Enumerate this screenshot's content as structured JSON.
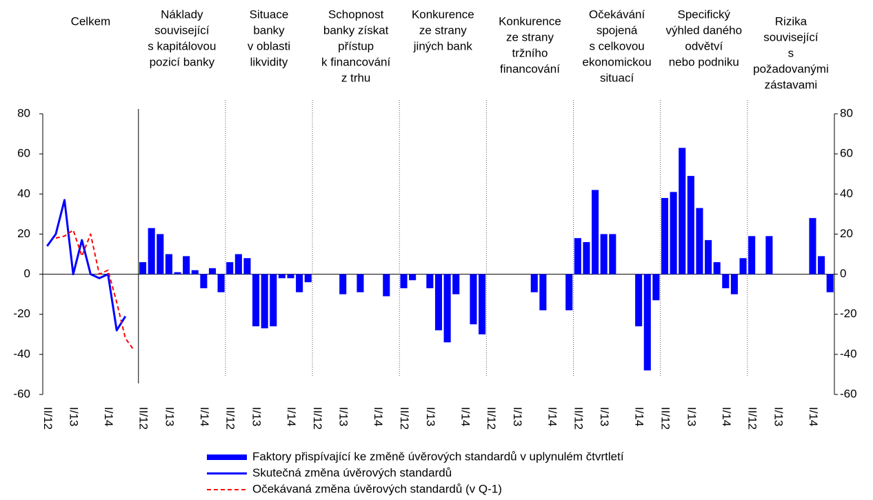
{
  "chart_data": {
    "type": "bar",
    "group_labels": [
      [
        "Celkem"
      ],
      [
        "Náklady",
        "související",
        "s kapitálovou",
        "pozicí banky"
      ],
      [
        "Situace",
        "banky",
        "v oblasti",
        "likvidity"
      ],
      [
        "Schopnost",
        "banky získat",
        "přístup",
        "k financování",
        "z trhu"
      ],
      [
        "Konkurence",
        "ze strany",
        "jiných bank"
      ],
      [
        "Konkurence",
        "ze strany",
        "tržního",
        "financování"
      ],
      [
        "Očekávání",
        "spojená",
        "s celkovou",
        "ekonomickou",
        "situací"
      ],
      [
        "Specifický",
        "výhled daného",
        "odvětví",
        "nebo podniku"
      ],
      [
        "Rizika",
        "související",
        "s",
        "požadovanými",
        "zástavami"
      ]
    ],
    "categories": [
      "II/12",
      null,
      null,
      "I/13",
      null,
      null,
      null,
      "I/14",
      null,
      null,
      null,
      "II/12",
      null,
      null,
      "I/13",
      null,
      null,
      null,
      "I/14",
      null,
      null,
      "II/12",
      null,
      null,
      "I/13",
      null,
      null,
      null,
      "I/14",
      null,
      null,
      "II/12",
      null,
      null,
      "I/13",
      null,
      null,
      null,
      "I/14",
      null,
      null,
      "II/12",
      null,
      null,
      "I/13",
      null,
      null,
      null,
      "I/14",
      null,
      null,
      "II/12",
      null,
      null,
      "I/13",
      null,
      null,
      null,
      "I/14",
      null,
      null,
      "II/12",
      null,
      null,
      "I/13",
      null,
      null,
      null,
      "I/14",
      null,
      null,
      "II/12",
      null,
      null,
      "I/13",
      null,
      null,
      null,
      "I/14",
      null,
      null,
      "II/12",
      null,
      null,
      "I/13",
      null,
      null,
      null,
      "I/14",
      null,
      null
    ],
    "series": [
      {
        "name": "Faktory přispívající ke změně úvěrových standardů v uplynulém čtvrtletí",
        "type": "bar",
        "color": "#0000ff",
        "values": [
          null,
          null,
          null,
          null,
          null,
          null,
          null,
          null,
          null,
          null,
          null,
          6,
          23,
          20,
          10,
          1,
          9,
          2,
          -7,
          3,
          -9,
          6,
          10,
          8,
          -26,
          -27,
          -26,
          -2,
          -2,
          -9,
          -4,
          0,
          0,
          0,
          -10,
          0,
          -9,
          0,
          0,
          -11,
          0,
          -7,
          -3,
          0,
          -7,
          -28,
          -34,
          -10,
          0,
          -25,
          -30,
          0,
          0,
          0,
          0,
          0,
          -9,
          -18,
          0,
          0,
          -18,
          18,
          16,
          42,
          20,
          20,
          0,
          0,
          -26,
          -48,
          -13,
          38,
          41,
          63,
          49,
          33,
          17,
          6,
          -7,
          -10,
          8,
          19,
          0,
          19,
          0,
          0,
          0,
          0,
          28,
          9,
          -9
        ]
      },
      {
        "name": "Skutečná změna úvěrových standardů",
        "type": "line",
        "color": "#0000ff",
        "line_style": "solid",
        "values": [
          14,
          20,
          37,
          0,
          17,
          0,
          -2,
          0,
          -28,
          -21,
          null,
          null,
          null,
          null,
          null,
          null,
          null,
          null,
          null,
          null,
          null,
          null,
          null,
          null,
          null,
          null,
          null,
          null,
          null,
          null,
          null,
          null,
          null,
          null,
          null,
          null,
          null,
          null,
          null,
          null,
          null,
          null,
          null,
          null,
          null,
          null,
          null,
          null,
          null,
          null,
          null,
          null,
          null,
          null,
          null,
          null,
          null,
          null,
          null,
          null,
          null,
          null,
          null,
          null,
          null,
          null,
          null,
          null,
          null,
          null,
          null,
          null,
          null,
          null,
          null,
          null,
          null,
          null,
          null,
          null,
          null,
          null,
          null,
          null,
          null,
          null,
          null,
          null,
          null,
          null,
          null
        ]
      },
      {
        "name": "Očekávaná změna úvěrových standardů (v Q-1)",
        "type": "line",
        "color": "#ff0000",
        "line_style": "dashed",
        "values": [
          null,
          18,
          19,
          22,
          9,
          20,
          0,
          2,
          -14,
          -32,
          -38,
          null,
          null,
          null,
          null,
          null,
          null,
          null,
          null,
          null,
          null,
          null,
          null,
          null,
          null,
          null,
          null,
          null,
          null,
          null,
          null,
          null,
          null,
          null,
          null,
          null,
          null,
          null,
          null,
          null,
          null,
          null,
          null,
          null,
          null,
          null,
          null,
          null,
          null,
          null,
          null,
          null,
          null,
          null,
          null,
          null,
          null,
          null,
          null,
          null,
          null,
          null,
          null,
          null,
          null,
          null,
          null,
          null,
          null,
          null,
          null,
          null,
          null,
          null,
          null,
          null,
          null,
          null,
          null,
          null,
          null,
          null,
          null,
          null,
          null,
          null,
          null,
          null,
          null,
          null,
          null
        ]
      }
    ],
    "ylim": [
      -60,
      80
    ],
    "yticks": [
      -60,
      -40,
      -20,
      0,
      20,
      40,
      60,
      80
    ],
    "legend": "bottom"
  }
}
